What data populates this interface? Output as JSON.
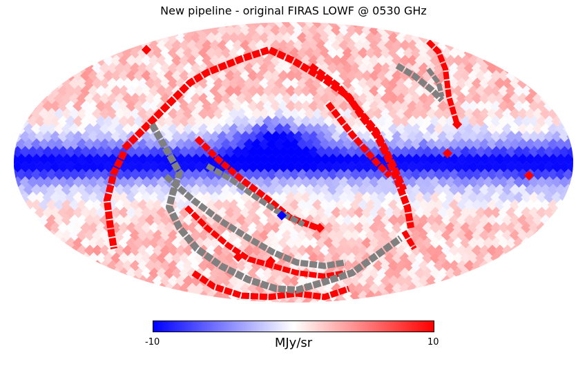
{
  "chart_data": {
    "type": "heatmap",
    "projection": "mollweide",
    "title": "New pipeline - original FIRAS LOWF @ 0530 GHz",
    "colorbar": {
      "min": -10,
      "max": 10,
      "min_label": "-10",
      "max_label": "10",
      "label": "MJy/sr",
      "colormap": [
        "#0000ff",
        "#ffffff",
        "#ff0000"
      ]
    },
    "mask_color": "#808080",
    "galactic_plane_value": -10,
    "high_latitude_mean": 2
  }
}
